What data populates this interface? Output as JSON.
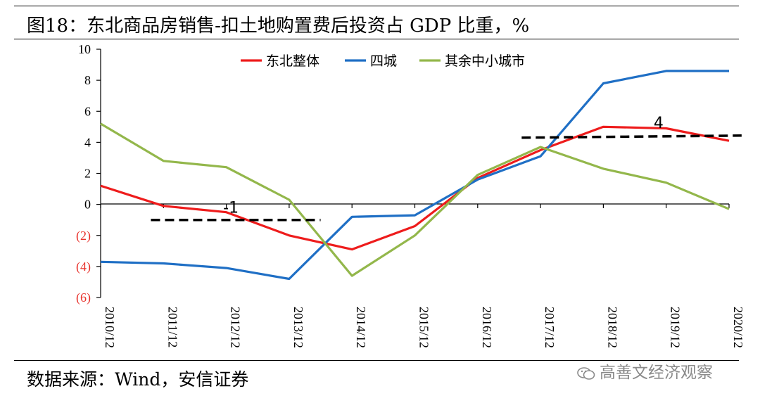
{
  "header": {
    "title": "图18：东北商品房销售-扣土地购置费后投资占 GDP 比重，%"
  },
  "footer": {
    "source": "数据来源：Wind，安信证券",
    "watermark": "高善文经济观察"
  },
  "chart_data": {
    "type": "line",
    "title": "图18：东北商品房销售-扣土地购置费后投资占 GDP 比重，%",
    "xlabel": "",
    "ylabel": "",
    "ylim": [
      -6,
      10
    ],
    "yticks": [
      10,
      8,
      6,
      4,
      2,
      0,
      -2,
      -4,
      -6
    ],
    "ytick_labels": [
      "10",
      "8",
      "6",
      "4",
      "2",
      "0",
      "(2)",
      "(4)",
      "(6)"
    ],
    "negative_tick_color": "#e8312b",
    "categories": [
      "2010/12",
      "2011/12",
      "2012/12",
      "2013/12",
      "2014/12",
      "2015/12",
      "2016/12",
      "2017/12",
      "2018/12",
      "2019/12",
      "2020/12"
    ],
    "legend_position": "top",
    "grid": false,
    "series": [
      {
        "name": "东北整体",
        "color": "#ee1c1c",
        "values": [
          1.2,
          -0.1,
          -0.5,
          -2.0,
          -2.9,
          -1.4,
          1.7,
          3.5,
          5.0,
          4.9,
          4.1
        ]
      },
      {
        "name": "四城",
        "color": "#1f6fc5",
        "values": [
          -3.7,
          -3.8,
          -4.1,
          -4.8,
          -0.8,
          -0.7,
          1.6,
          3.1,
          7.8,
          8.6,
          8.6
        ]
      },
      {
        "name": "其余中小城市",
        "color": "#93b74b",
        "values": [
          5.2,
          2.8,
          2.4,
          0.3,
          -4.6,
          -2.0,
          1.9,
          3.7,
          2.3,
          1.4,
          -0.3
        ]
      }
    ],
    "reference_lines": [
      {
        "label": "-1",
        "y": -1,
        "x_from": 0.8,
        "x_to": 3.5
      },
      {
        "label": "4",
        "y": 4.3,
        "x_from": 6.7,
        "x_to": 10.2
      }
    ]
  }
}
